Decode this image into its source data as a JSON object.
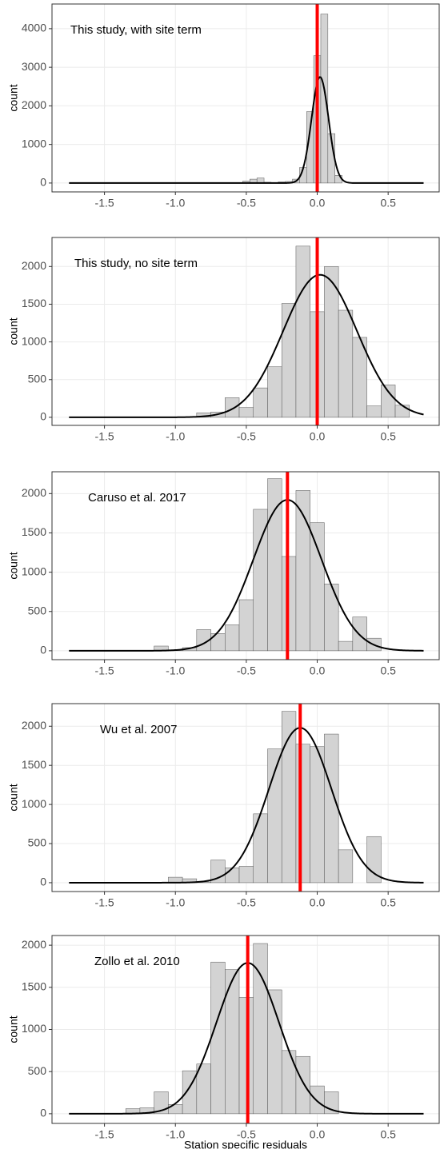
{
  "chart_data": [
    {
      "type": "histogram",
      "annotation": "This study, with site term",
      "ylabel": "count",
      "bins": [
        -0.525,
        -0.475,
        -0.425,
        -0.375,
        -0.325,
        -0.275,
        -0.225,
        -0.175,
        -0.125,
        -0.075,
        -0.025,
        0.025,
        0.075,
        0.125,
        0.175
      ],
      "values": [
        50,
        100,
        130,
        20,
        0,
        30,
        40,
        100,
        400,
        1850,
        3300,
        4380,
        1280,
        200
      ],
      "color": "#d3d3d3",
      "xlim": [
        -1.87,
        0.86
      ],
      "ylim": [
        -230,
        4640
      ],
      "xticks": [
        {
          "value": -1.5,
          "label": "-1.5"
        },
        {
          "value": -1.0,
          "label": "-1.0"
        },
        -0.5,
        {
          "value": 0.0,
          "label": "0.0"
        },
        0.5
      ],
      "yticks": [
        0,
        1000,
        2000,
        3000,
        4000
      ],
      "grid": true,
      "fit": {
        "mean": 0.02,
        "sd": 0.06,
        "peak": 2750,
        "range": [
          -1.75,
          0.75
        ],
        "color": "#000000"
      },
      "vline": {
        "value": 0.0,
        "color": "#ff0000"
      }
    },
    {
      "type": "histogram",
      "annotation": "This study, no site term",
      "ylabel": "count",
      "bins": [
        -0.85,
        -0.75,
        -0.65,
        -0.55,
        -0.45,
        -0.35,
        -0.25,
        -0.15,
        -0.05,
        0.05,
        0.15,
        0.25,
        0.35,
        0.45,
        0.55,
        0.65
      ],
      "values": [
        60,
        70,
        260,
        130,
        390,
        670,
        1510,
        2270,
        1400,
        2000,
        1420,
        1060,
        150,
        430,
        160
      ],
      "color": "#d3d3d3",
      "xlim": [
        -1.87,
        0.86
      ],
      "ylim": [
        -107,
        2385
      ],
      "xticks": [
        {
          "value": -1.5,
          "label": "-1.5"
        },
        {
          "value": -1.0,
          "label": "-1.0"
        },
        -0.5,
        {
          "value": 0.0,
          "label": "0.0"
        },
        0.5
      ],
      "yticks": [
        0,
        500,
        1000,
        1500,
        2000
      ],
      "grid": true,
      "fit": {
        "mean": 0.02,
        "sd": 0.26,
        "peak": 1890,
        "range": [
          -1.75,
          0.75
        ],
        "color": "#000000"
      },
      "vline": {
        "value": 0.0,
        "color": "#ff0000"
      }
    },
    {
      "type": "histogram",
      "annotation": "Caruso et al. 2017",
      "ylabel": "count",
      "bins": [
        -1.15,
        -1.05,
        -0.95,
        -0.85,
        -0.75,
        -0.65,
        -0.55,
        -0.45,
        -0.35,
        -0.25,
        -0.15,
        -0.05,
        0.05,
        0.15,
        0.25,
        0.35,
        0.45
      ],
      "values": [
        60,
        10,
        40,
        270,
        220,
        330,
        650,
        1800,
        2190,
        1200,
        2040,
        1630,
        850,
        120,
        430,
        160
      ],
      "color": "#d3d3d3",
      "xlim": [
        -1.87,
        0.86
      ],
      "ylim": [
        -113,
        2278
      ],
      "xticks": [
        {
          "value": -1.5,
          "label": "-1.5"
        },
        {
          "value": -1.0,
          "label": "-1.0"
        },
        -0.5,
        {
          "value": 0.0,
          "label": "0.0"
        },
        0.5
      ],
      "yticks": [
        0,
        500,
        1000,
        1500,
        2000
      ],
      "grid": true,
      "fit": {
        "mean": -0.21,
        "sd": 0.24,
        "peak": 1920,
        "range": [
          -1.75,
          0.75
        ],
        "color": "#000000"
      },
      "vline": {
        "value": -0.21,
        "color": "#ff0000"
      }
    },
    {
      "type": "histogram",
      "annotation": "Wu et al. 2007",
      "ylabel": "count",
      "bins": [
        -1.05,
        -0.95,
        -0.85,
        -0.75,
        -0.65,
        -0.55,
        -0.45,
        -0.35,
        -0.25,
        -0.15,
        -0.05,
        0.05,
        0.15,
        0.25,
        0.35,
        0.45
      ],
      "values": [
        70,
        50,
        10,
        290,
        190,
        210,
        880,
        1710,
        2190,
        1770,
        1740,
        1900,
        420,
        0,
        590
      ],
      "color": "#d3d3d3",
      "xlim": [
        -1.87,
        0.86
      ],
      "ylim": [
        -113,
        2289
      ],
      "xticks": [
        {
          "value": -1.5,
          "label": "-1.5"
        },
        {
          "value": -1.0,
          "label": "-1.0"
        },
        -0.5,
        {
          "value": 0.0,
          "label": "0.0"
        },
        0.5
      ],
      "yticks": [
        0,
        500,
        1000,
        1500,
        2000
      ],
      "grid": true,
      "fit": {
        "mean": -0.12,
        "sd": 0.22,
        "peak": 1980,
        "range": [
          -1.75,
          0.75
        ],
        "color": "#000000"
      },
      "vline": {
        "value": -0.12,
        "color": "#ff0000"
      }
    },
    {
      "type": "histogram",
      "annotation": "Zollo et al. 2010",
      "ylabel": "count",
      "xlabel": "Station specific residuals",
      "bins": [
        -1.35,
        -1.25,
        -1.15,
        -1.05,
        -0.95,
        -0.85,
        -0.75,
        -0.65,
        -0.55,
        -0.45,
        -0.35,
        -0.25,
        -0.15,
        -0.05,
        0.05,
        0.15
      ],
      "values": [
        60,
        70,
        260,
        110,
        510,
        590,
        1800,
        1710,
        1380,
        2020,
        1470,
        750,
        680,
        330,
        260
      ],
      "color": "#d3d3d3",
      "xlim": [
        -1.87,
        0.86
      ],
      "ylim": [
        -115,
        2115
      ],
      "xticks": [
        {
          "value": -1.5,
          "label": "-1.5"
        },
        {
          "value": -1.0,
          "label": "-1.0"
        },
        -0.5,
        {
          "value": 0.0,
          "label": "0.0"
        },
        0.5
      ],
      "yticks": [
        0,
        500,
        1000,
        1500,
        2000
      ],
      "grid": true,
      "fit": {
        "mean": -0.49,
        "sd": 0.22,
        "peak": 1790,
        "range": [
          -1.75,
          0.75
        ],
        "color": "#000000"
      },
      "vline": {
        "value": -0.49,
        "color": "#ff0000"
      }
    }
  ]
}
